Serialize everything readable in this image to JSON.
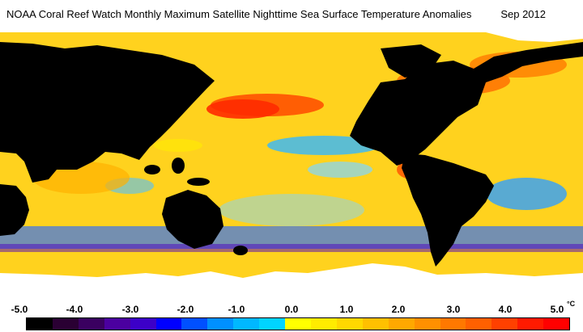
{
  "header": {
    "title": "NOAA Coral Reef Watch Monthly Maximum Satellite Nighttime Sea Surface Temperature Anomalies",
    "date": "Sep 2012"
  },
  "legend": {
    "ticks": [
      "-5.0",
      "-4.0",
      "-3.0",
      "-2.0",
      "-1.0",
      "0.0",
      "1.0",
      "2.0",
      "3.0",
      "4.0",
      "5.0"
    ],
    "unit": "°C",
    "colors": [
      "#000000",
      "#2a0033",
      "#3a0060",
      "#4b00a0",
      "#3c00c8",
      "#0000ff",
      "#0050ff",
      "#0090ff",
      "#00b8ff",
      "#00d4ff",
      "#ffff00",
      "#ffec00",
      "#ffd800",
      "#ffc000",
      "#ffa800",
      "#ff9000",
      "#ff7800",
      "#ff6000",
      "#ff4000",
      "#ff1a00",
      "#ff0000"
    ]
  },
  "map": {
    "ocean_color": "#ffd21e",
    "land_color": "#000000",
    "ice_color": "#ffffff"
  }
}
